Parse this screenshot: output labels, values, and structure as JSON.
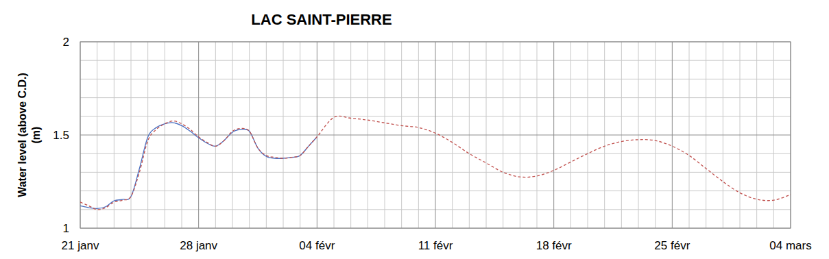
{
  "chart_data": {
    "type": "line",
    "title": "LAC SAINT-PIERRE",
    "y_label": [
      "Water level (above C.D.)",
      "(m)"
    ],
    "xlim": [
      0,
      42
    ],
    "xticks": [
      {
        "value": 0,
        "label": "21 janv"
      },
      {
        "value": 7,
        "label": "28 janv"
      },
      {
        "value": 14,
        "label": "04 févr"
      },
      {
        "value": 21,
        "label": "11 févr"
      },
      {
        "value": 28,
        "label": "18 févr"
      },
      {
        "value": 35,
        "label": "25 févr"
      },
      {
        "value": 42,
        "label": "04 mars"
      }
    ],
    "ylim": [
      1,
      2
    ],
    "yticks": [
      1,
      1.5,
      2
    ],
    "grid": true,
    "series": [
      {
        "color": "#4a6fc1",
        "line_style": "solid",
        "x": [
          0,
          0.5,
          1,
          1.5,
          2,
          2.5,
          3,
          3.5,
          4,
          4.5,
          5,
          5.5,
          6,
          6.5,
          7,
          7.5,
          8,
          8.5,
          9,
          9.5,
          10,
          10.5,
          11,
          11.5,
          12,
          12.5,
          13,
          13.5,
          14
        ],
        "values": [
          1.12,
          1.11,
          1.105,
          1.115,
          1.147,
          1.154,
          1.17,
          1.32,
          1.49,
          1.54,
          1.56,
          1.566,
          1.55,
          1.52,
          1.485,
          1.456,
          1.44,
          1.47,
          1.515,
          1.53,
          1.52,
          1.43,
          1.385,
          1.375,
          1.375,
          1.38,
          1.39,
          1.44,
          1.49
        ]
      },
      {
        "color": "#c0504d",
        "line_style": "dashed",
        "x": [
          0,
          0.5,
          1,
          1.5,
          2,
          2.5,
          3,
          3.5,
          4,
          4.5,
          5,
          5.5,
          6,
          6.5,
          7,
          7.5,
          8,
          8.5,
          9,
          9.5,
          10,
          10.5,
          11,
          11.5,
          12,
          12.5,
          13,
          13.5,
          14,
          15,
          16,
          17,
          18,
          19,
          20,
          21,
          22,
          23,
          24,
          25,
          26,
          27,
          28,
          29,
          30,
          31,
          32,
          33,
          34,
          35,
          36,
          37,
          38,
          39,
          40,
          41,
          42
        ],
        "values": [
          1.14,
          1.12,
          1.1,
          1.11,
          1.14,
          1.15,
          1.17,
          1.3,
          1.47,
          1.53,
          1.56,
          1.575,
          1.56,
          1.53,
          1.49,
          1.46,
          1.44,
          1.47,
          1.52,
          1.535,
          1.52,
          1.43,
          1.39,
          1.38,
          1.375,
          1.38,
          1.39,
          1.44,
          1.49,
          1.595,
          1.59,
          1.58,
          1.565,
          1.55,
          1.54,
          1.51,
          1.46,
          1.4,
          1.35,
          1.3,
          1.275,
          1.28,
          1.31,
          1.355,
          1.4,
          1.44,
          1.465,
          1.475,
          1.47,
          1.44,
          1.39,
          1.32,
          1.25,
          1.19,
          1.155,
          1.15,
          1.18
        ]
      }
    ]
  }
}
